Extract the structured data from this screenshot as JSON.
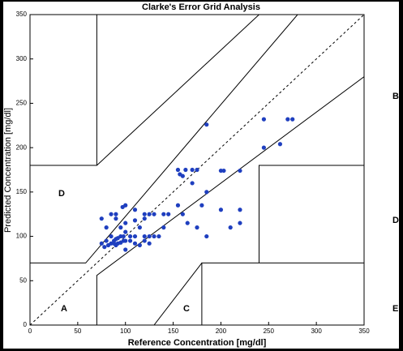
{
  "chart_data": {
    "type": "scatter",
    "title": "Clarke's Error Grid Analysis",
    "xlabel": "Reference Concentration [mg/dl]",
    "ylabel": "Predicted Concentration [mg/dl]",
    "xlim": [
      0,
      350
    ],
    "ylim": [
      0,
      350
    ],
    "xticks": [
      0,
      50,
      100,
      150,
      200,
      250,
      300,
      350
    ],
    "yticks": [
      0,
      50,
      100,
      150,
      200,
      250,
      300,
      350
    ],
    "zone_labels": [
      "A",
      "B",
      "C",
      "D",
      "D",
      "E"
    ],
    "series": [
      {
        "color": "#1f3fbf",
        "x": [
          185,
          245,
          270,
          275,
          245,
          262,
          220,
          200,
          203,
          155,
          157,
          163,
          170,
          175,
          160,
          170,
          185,
          155,
          180,
          200,
          220,
          220,
          160,
          165,
          175,
          185,
          210,
          145,
          140,
          130,
          125,
          120,
          120,
          110,
          100,
          97,
          110,
          115,
          120,
          125,
          135,
          140,
          100,
          100,
          95,
          90,
          90,
          85,
          75,
          80,
          85,
          80,
          75,
          78,
          82,
          85,
          88,
          90,
          92,
          95,
          98,
          90,
          88,
          92,
          95,
          100,
          105,
          110,
          100,
          105,
          110,
          98,
          120,
          115,
          130,
          125
        ],
        "values": [
          226,
          232,
          232,
          232,
          200,
          204,
          174,
          174,
          174,
          175,
          170,
          175,
          175,
          175,
          168,
          160,
          150,
          135,
          135,
          130,
          130,
          115,
          125,
          115,
          110,
          100,
          110,
          125,
          125,
          125,
          125,
          125,
          120,
          130,
          135,
          133,
          118,
          110,
          100,
          100,
          100,
          110,
          115,
          105,
          110,
          120,
          125,
          125,
          120,
          110,
          100,
          95,
          92,
          88,
          90,
          92,
          95,
          97,
          98,
          100,
          95,
          90,
          92,
          92,
          93,
          95,
          95,
          92,
          85,
          100,
          100,
          100,
          95,
          90,
          100,
          92
        ]
      }
    ]
  }
}
